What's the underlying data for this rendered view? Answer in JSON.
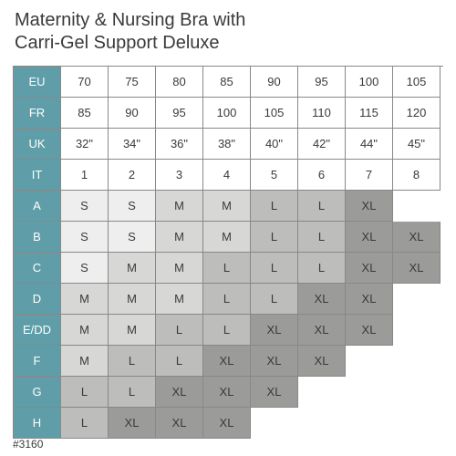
{
  "title_line1": "Maternity & Nursing Bra with",
  "title_line2": "Carri-Gel Support Deluxe",
  "footer_code": "#3160",
  "colors": {
    "header_bg": "#5f9ea8",
    "header_fg": "#ffffff",
    "shades": {
      "s0": "#ffffff",
      "s1": "#eeeeee",
      "s2": "#d7d7d5",
      "s3": "#bdbdbb",
      "s4": "#9b9b99"
    },
    "border": "#888888",
    "text": "#3a3a3a"
  },
  "col_headers": [
    "EU",
    "FR",
    "UK",
    "IT",
    "A",
    "B",
    "C",
    "D",
    "E/DD",
    "F",
    "G",
    "H"
  ],
  "top_rows": [
    [
      "70",
      "75",
      "80",
      "85",
      "90",
      "95",
      "100",
      "105"
    ],
    [
      "85",
      "90",
      "95",
      "100",
      "105",
      "110",
      "115",
      "120"
    ],
    [
      "32\"",
      "34\"",
      "36\"",
      "38\"",
      "40\"",
      "42\"",
      "44\"",
      "45\""
    ],
    [
      "1",
      "2",
      "3",
      "4",
      "5",
      "6",
      "7",
      "8"
    ]
  ],
  "size_rows": [
    {
      "cells": [
        {
          "v": "S",
          "s": "s1"
        },
        {
          "v": "S",
          "s": "s1"
        },
        {
          "v": "M",
          "s": "s2"
        },
        {
          "v": "M",
          "s": "s2"
        },
        {
          "v": "L",
          "s": "s3"
        },
        {
          "v": "L",
          "s": "s3"
        },
        {
          "v": "XL",
          "s": "s4"
        },
        null
      ]
    },
    {
      "cells": [
        {
          "v": "S",
          "s": "s1"
        },
        {
          "v": "S",
          "s": "s1"
        },
        {
          "v": "M",
          "s": "s2"
        },
        {
          "v": "M",
          "s": "s2"
        },
        {
          "v": "L",
          "s": "s3"
        },
        {
          "v": "L",
          "s": "s3"
        },
        {
          "v": "XL",
          "s": "s4"
        },
        {
          "v": "XL",
          "s": "s4"
        }
      ]
    },
    {
      "cells": [
        {
          "v": "S",
          "s": "s1"
        },
        {
          "v": "M",
          "s": "s2"
        },
        {
          "v": "M",
          "s": "s2"
        },
        {
          "v": "L",
          "s": "s3"
        },
        {
          "v": "L",
          "s": "s3"
        },
        {
          "v": "L",
          "s": "s3"
        },
        {
          "v": "XL",
          "s": "s4"
        },
        {
          "v": "XL",
          "s": "s4"
        }
      ]
    },
    {
      "cells": [
        {
          "v": "M",
          "s": "s2"
        },
        {
          "v": "M",
          "s": "s2"
        },
        {
          "v": "M",
          "s": "s2"
        },
        {
          "v": "L",
          "s": "s3"
        },
        {
          "v": "L",
          "s": "s3"
        },
        {
          "v": "XL",
          "s": "s4"
        },
        {
          "v": "XL",
          "s": "s4"
        },
        null
      ]
    },
    {
      "cells": [
        {
          "v": "M",
          "s": "s2"
        },
        {
          "v": "M",
          "s": "s2"
        },
        {
          "v": "L",
          "s": "s3"
        },
        {
          "v": "L",
          "s": "s3"
        },
        {
          "v": "XL",
          "s": "s4"
        },
        {
          "v": "XL",
          "s": "s4"
        },
        {
          "v": "XL",
          "s": "s4"
        },
        null
      ]
    },
    {
      "cells": [
        {
          "v": "M",
          "s": "s2"
        },
        {
          "v": "L",
          "s": "s3"
        },
        {
          "v": "L",
          "s": "s3"
        },
        {
          "v": "XL",
          "s": "s4"
        },
        {
          "v": "XL",
          "s": "s4"
        },
        {
          "v": "XL",
          "s": "s4"
        },
        null,
        null
      ]
    },
    {
      "cells": [
        {
          "v": "L",
          "s": "s3"
        },
        {
          "v": "L",
          "s": "s3"
        },
        {
          "v": "XL",
          "s": "s4"
        },
        {
          "v": "XL",
          "s": "s4"
        },
        {
          "v": "XL",
          "s": "s4"
        },
        null,
        null,
        null
      ]
    },
    {
      "cells": [
        {
          "v": "L",
          "s": "s3"
        },
        {
          "v": "XL",
          "s": "s4"
        },
        {
          "v": "XL",
          "s": "s4"
        },
        {
          "v": "XL",
          "s": "s4"
        },
        null,
        null,
        null,
        null
      ]
    }
  ]
}
